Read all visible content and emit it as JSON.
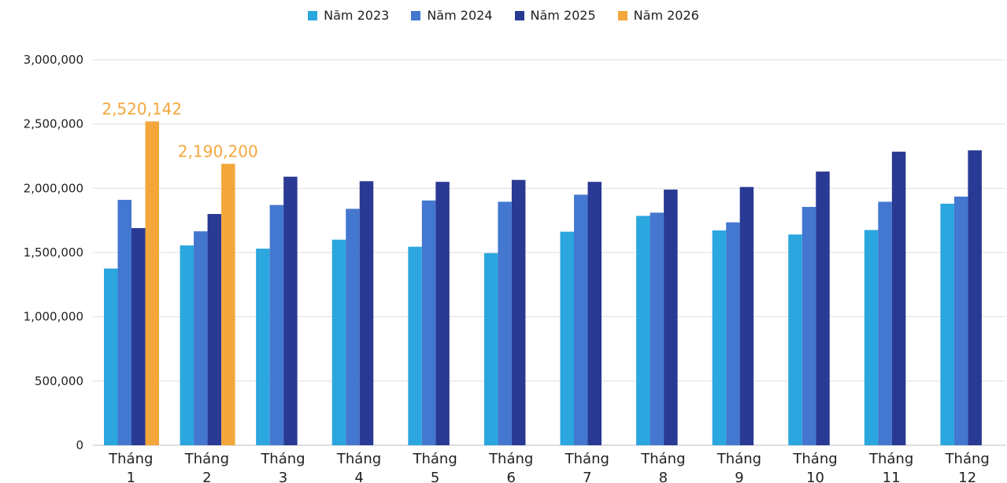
{
  "chart_data": {
    "type": "bar",
    "title": "",
    "xlabel": "",
    "ylabel": "",
    "ylim": [
      0,
      3000000
    ],
    "yticks": [
      0,
      500000,
      1000000,
      1500000,
      2000000,
      2500000,
      3000000
    ],
    "ytick_labels": [
      "0",
      "500,000",
      "1,000,000",
      "1,500,000",
      "2,000,000",
      "2,500,000",
      "3,000,000"
    ],
    "grid": true,
    "legend_position": "top-center",
    "categories": [
      [
        "Tháng",
        "1"
      ],
      [
        "Tháng",
        "2"
      ],
      [
        "Tháng",
        "3"
      ],
      [
        "Tháng",
        "4"
      ],
      [
        "Tháng",
        "5"
      ],
      [
        "Tháng",
        "6"
      ],
      [
        "Tháng",
        "7"
      ],
      [
        "Tháng",
        "8"
      ],
      [
        "Tháng",
        "9"
      ],
      [
        "Tháng",
        "10"
      ],
      [
        "Tháng",
        "11"
      ],
      [
        "Tháng",
        "12"
      ]
    ],
    "series": [
      {
        "name": "Năm 2023",
        "color": "#2BA6DE",
        "values": [
          1375000,
          1555000,
          1530000,
          1600000,
          1545000,
          1495000,
          1662000,
          1785000,
          1672000,
          1640000,
          1675000,
          1880000
        ]
      },
      {
        "name": "Năm 2024",
        "color": "#4477CF",
        "values": [
          1910000,
          1665000,
          1870000,
          1840000,
          1905000,
          1895000,
          1950000,
          1810000,
          1735000,
          1855000,
          1895000,
          1935000
        ]
      },
      {
        "name": "Năm 2025",
        "color": "#283A93",
        "values": [
          1690000,
          1800000,
          2090000,
          2055000,
          2050000,
          2065000,
          2050000,
          1990000,
          2010000,
          2130000,
          2285000,
          2295000
        ]
      },
      {
        "name": "Năm 2026",
        "color": "#F3A73B",
        "values": [
          2520142,
          2190200,
          null,
          null,
          null,
          null,
          null,
          null,
          null,
          null,
          null,
          null
        ]
      }
    ],
    "data_labels": [
      {
        "series": 3,
        "index": 0,
        "text": "2,520,142"
      },
      {
        "series": 3,
        "index": 1,
        "text": "2,190,200"
      }
    ]
  }
}
